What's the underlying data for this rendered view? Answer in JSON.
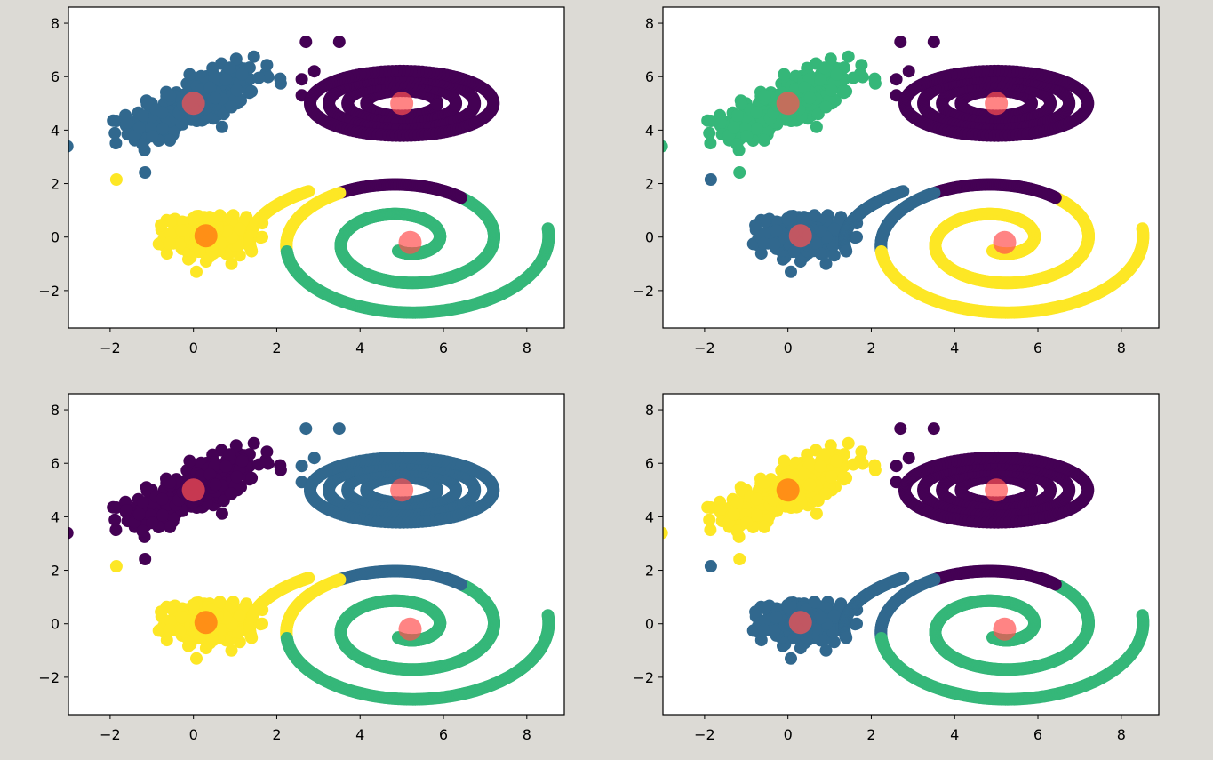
{
  "window": {
    "background": "#dcdad5"
  },
  "palette": {
    "c0": "#440154",
    "c1": "#31688e",
    "c2": "#35b779",
    "c3": "#fde725",
    "center_red": "#ff5050",
    "center_orange": "#ff6a10"
  },
  "axes_common": {
    "xlim": [
      -3,
      8.9
    ],
    "ylim": [
      -3.4,
      8.6
    ],
    "xticks": [
      -2,
      0,
      2,
      4,
      6,
      8
    ],
    "yticks": [
      -2,
      0,
      2,
      4,
      6,
      8
    ],
    "xtick_labels": [
      "−2",
      "0",
      "2",
      "4",
      "6",
      "8"
    ],
    "ytick_labels": [
      "−2",
      "0",
      "2",
      "4",
      "6",
      "8"
    ]
  },
  "chart_data": [
    {
      "type": "scatter",
      "title": "",
      "xlabel": "",
      "ylabel": "",
      "xlim": [
        -3,
        8.9
      ],
      "ylim": [
        -3.4,
        8.6
      ],
      "grid": false,
      "cluster_colors": {
        "blob_top_left": "c1",
        "blob_bottom_left": "c3",
        "rings": "c0",
        "spiral_outer_arc": "c0",
        "spiral_left_arc": "c3",
        "spiral_body": "c2",
        "stray_point": "c3",
        "far_points": "c0"
      },
      "centers": [
        {
          "x": 0.0,
          "y": 5.0,
          "color": "#ff5050"
        },
        {
          "x": 0.3,
          "y": 0.05,
          "color": "#ff6a10"
        },
        {
          "x": 5.0,
          "y": 5.0,
          "color": "#ff5050"
        },
        {
          "x": 5.2,
          "y": -0.2,
          "color": "#ff5050"
        }
      ]
    },
    {
      "type": "scatter",
      "title": "",
      "xlabel": "",
      "ylabel": "",
      "xlim": [
        -3,
        8.9
      ],
      "ylim": [
        -3.4,
        8.6
      ],
      "grid": false,
      "cluster_colors": {
        "blob_top_left": "c2",
        "blob_bottom_left": "c1",
        "rings": "c0",
        "spiral_outer_arc": "c0",
        "spiral_left_arc": "c1",
        "spiral_body": "c3",
        "stray_point": "c1",
        "far_points": "c0"
      },
      "centers": [
        {
          "x": 0.0,
          "y": 5.0,
          "color": "#ff5050"
        },
        {
          "x": 0.3,
          "y": 0.05,
          "color": "#ff5050"
        },
        {
          "x": 5.0,
          "y": 5.0,
          "color": "#ff5050"
        },
        {
          "x": 5.2,
          "y": -0.2,
          "color": "#ff5050"
        }
      ]
    },
    {
      "type": "scatter",
      "title": "",
      "xlabel": "",
      "ylabel": "",
      "xlim": [
        -3,
        8.9
      ],
      "ylim": [
        -3.4,
        8.6
      ],
      "grid": false,
      "cluster_colors": {
        "blob_top_left": "c0",
        "blob_bottom_left": "c3",
        "rings": "c1",
        "spiral_outer_arc": "c1",
        "spiral_left_arc": "c3",
        "spiral_body": "c2",
        "stray_point": "c3",
        "far_points": "c1"
      },
      "centers": [
        {
          "x": 0.0,
          "y": 5.0,
          "color": "#ff5050"
        },
        {
          "x": 0.3,
          "y": 0.05,
          "color": "#ff6a10"
        },
        {
          "x": 5.0,
          "y": 5.0,
          "color": "#ff5050"
        },
        {
          "x": 5.2,
          "y": -0.2,
          "color": "#ff5050"
        }
      ]
    },
    {
      "type": "scatter",
      "title": "",
      "xlabel": "",
      "ylabel": "",
      "xlim": [
        -3,
        8.9
      ],
      "ylim": [
        -3.4,
        8.6
      ],
      "grid": false,
      "cluster_colors": {
        "blob_top_left": "c3",
        "blob_bottom_left": "c1",
        "rings": "c0",
        "spiral_outer_arc": "c0",
        "spiral_left_arc": "c1",
        "spiral_body": "c2",
        "stray_point": "c1",
        "far_points": "c0"
      },
      "centers": [
        {
          "x": 0.0,
          "y": 5.0,
          "color": "#ff6a10"
        },
        {
          "x": 0.3,
          "y": 0.05,
          "color": "#ff5050"
        },
        {
          "x": 5.0,
          "y": 5.0,
          "color": "#ff5050"
        },
        {
          "x": 5.2,
          "y": -0.2,
          "color": "#ff5050"
        }
      ]
    }
  ]
}
